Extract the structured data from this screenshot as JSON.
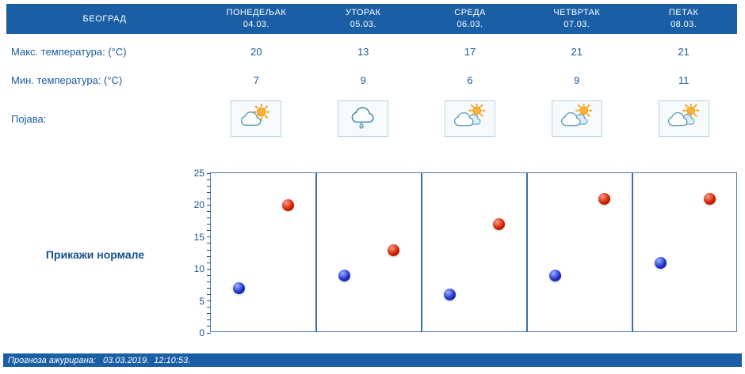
{
  "header": {
    "location": "БЕОГРАД",
    "days": [
      {
        "name": "ПОНЕДЕЉАК",
        "date": "04.03."
      },
      {
        "name": "УТОРАК",
        "date": "05.03."
      },
      {
        "name": "СРЕДА",
        "date": "06.03."
      },
      {
        "name": "ЧЕТВРТАК",
        "date": "07.03."
      },
      {
        "name": "ПЕТАК",
        "date": "08.03."
      }
    ]
  },
  "rows": {
    "max_label": "Макс. температура: (°C)",
    "min_label": "Мин. температура: (°C)",
    "phenomenon_label": "Појава:",
    "max_values": [
      "20",
      "13",
      "17",
      "21",
      "21"
    ],
    "min_values": [
      "7",
      "9",
      "6",
      "9",
      "11"
    ],
    "icons": [
      "sun-with-cloud",
      "rain-cloud",
      "sun-behind-cloud",
      "sun-behind-cloud",
      "sun-behind-cloud"
    ]
  },
  "normals_button_label": "Прикажи нормале",
  "footer": {
    "text": "Прогноза ажурирана:   03.03.2019.  12:10:53."
  },
  "colors": {
    "header_bg": "#1a5fa5",
    "label_text": "#1a5a9e",
    "chart_line": "#3a6fad",
    "max_dot": "#d42300",
    "min_dot": "#2233cc"
  },
  "chart_data": {
    "type": "scatter",
    "categories": [
      "04.03.",
      "05.03.",
      "06.03.",
      "07.03.",
      "08.03."
    ],
    "series": [
      {
        "name": "Макс. температура (°C)",
        "color": "#d42300",
        "values": [
          20,
          13,
          17,
          21,
          21
        ]
      },
      {
        "name": "Мин. температура (°C)",
        "color": "#2233cc",
        "values": [
          7,
          9,
          6,
          9,
          11
        ]
      }
    ],
    "ylabel": "",
    "xlabel": "",
    "ylim": [
      0,
      25
    ],
    "yticks": [
      0,
      5,
      10,
      15,
      20,
      25
    ],
    "grid": "vertical-separators-per-day",
    "legend": "none"
  }
}
